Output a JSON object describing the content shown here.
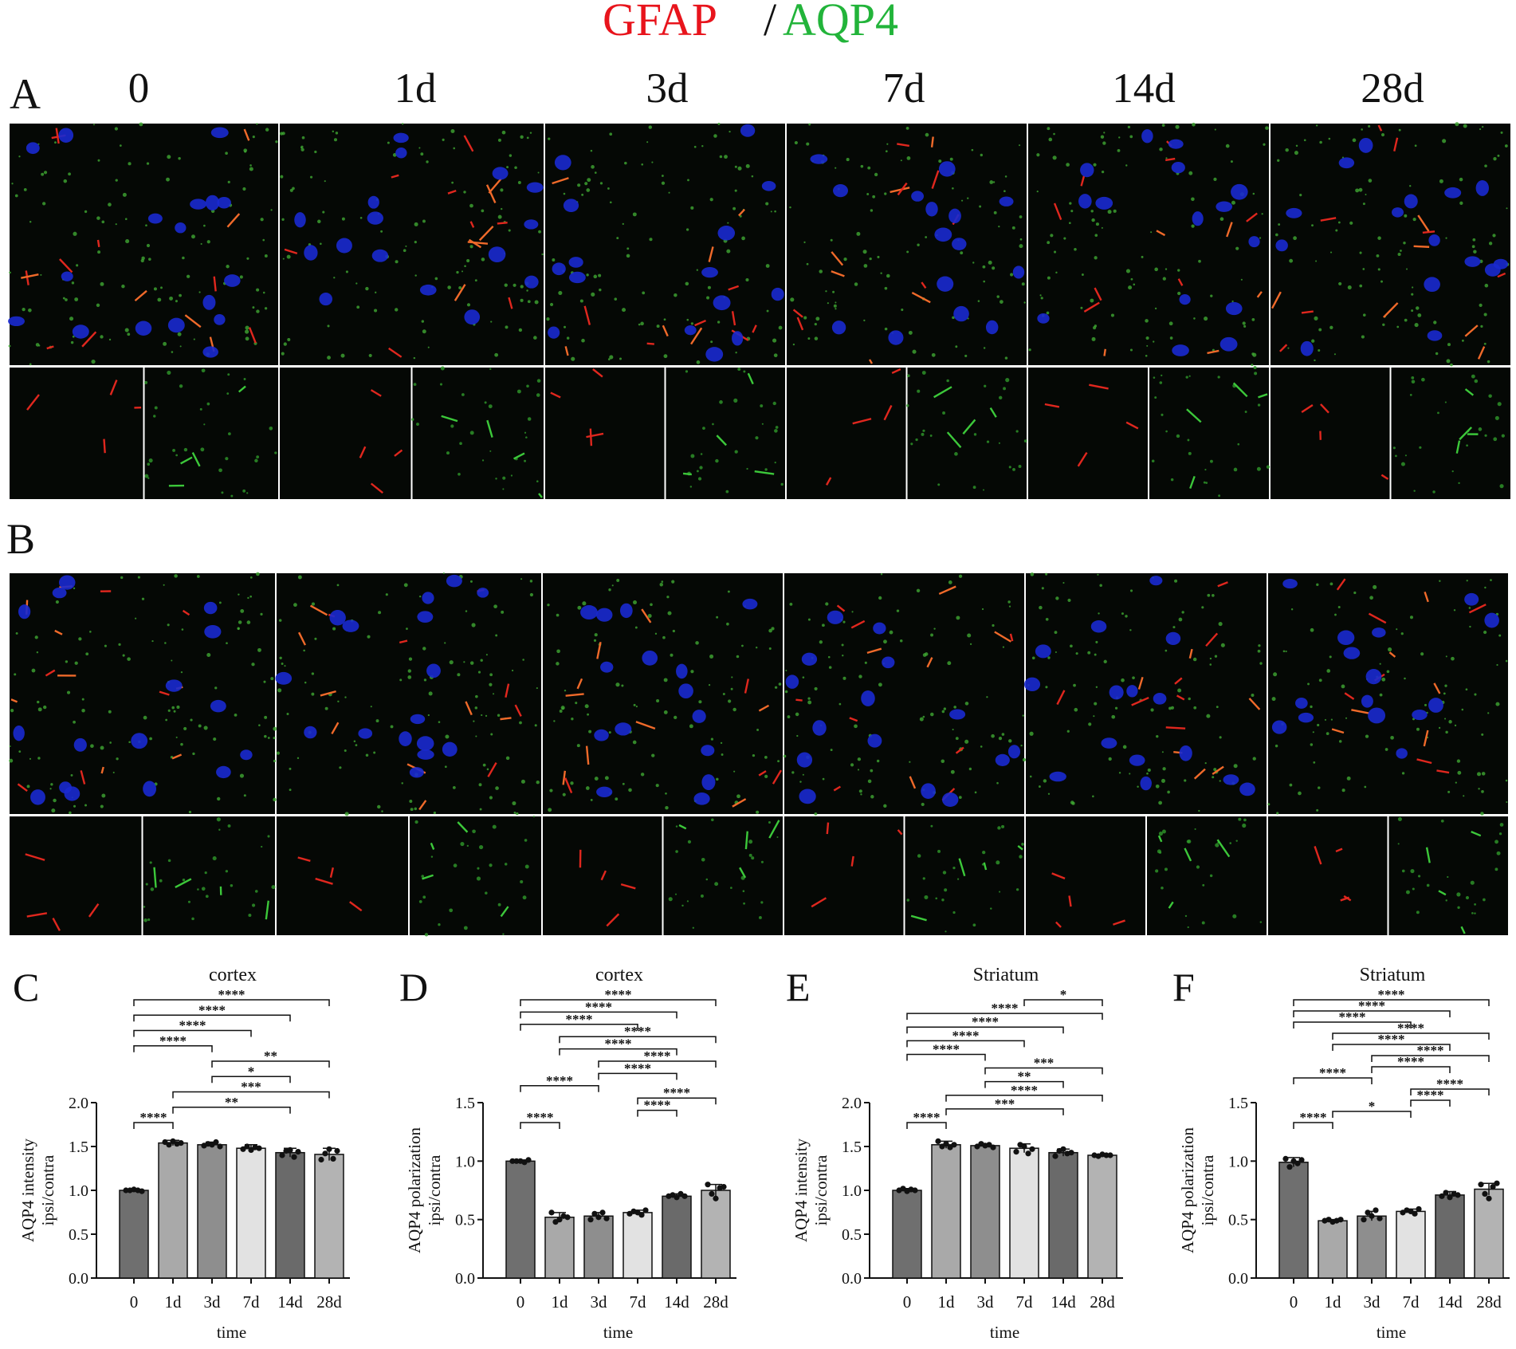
{
  "figure": {
    "title_parts": [
      "GFAP",
      "/",
      "AQP4"
    ],
    "panel_a": "A",
    "panel_b": "B",
    "columns": [
      "0",
      "1d",
      "3d",
      "7d",
      "14d",
      "28d"
    ]
  },
  "chart_data": [
    {
      "type": "bar",
      "panel": "C",
      "title": "cortex",
      "xlabel": "time",
      "ylabel": [
        "AQP4 intensity",
        "ipsi/contra"
      ],
      "categories": [
        "0",
        "1d",
        "3d",
        "7d",
        "14d",
        "28d"
      ],
      "values": [
        1.0,
        1.54,
        1.52,
        1.48,
        1.43,
        1.41
      ],
      "errors": [
        0.01,
        0.03,
        0.03,
        0.04,
        0.05,
        0.07
      ],
      "points": [
        [
          1.0,
          1.0,
          1.01,
          1.0,
          0.99
        ],
        [
          1.55,
          1.52,
          1.56,
          1.53,
          1.54
        ],
        [
          1.51,
          1.53,
          1.52,
          1.55,
          1.5
        ],
        [
          1.47,
          1.5,
          1.46,
          1.49,
          1.48
        ],
        [
          1.4,
          1.45,
          1.46,
          1.38,
          1.44
        ],
        [
          1.35,
          1.42,
          1.47,
          1.36,
          1.45
        ]
      ],
      "colors": [
        "#6f6f6f",
        "#a9a9a9",
        "#8e8e8e",
        "#e2e2e2",
        "#6a6a6a",
        "#b3b3b3"
      ],
      "ylim": [
        0,
        2.0
      ],
      "yticks": [
        {
          "value": 0,
          "label": "0.0"
        },
        {
          "value": 0.5,
          "label": "0.5"
        },
        {
          "value": 1.0,
          "label": "1.0"
        },
        {
          "value": 1.5,
          "label": "1.5"
        },
        {
          "value": 2.0,
          "label": "2.0"
        }
      ],
      "brackets": [
        {
          "from": 0,
          "to": 1,
          "label": "****"
        },
        {
          "from": 1,
          "to": 4,
          "label": "**"
        },
        {
          "from": 1,
          "to": 5,
          "label": "***"
        },
        {
          "from": 2,
          "to": 4,
          "label": "*"
        },
        {
          "from": 2,
          "to": 5,
          "label": "**"
        },
        {
          "from": 0,
          "to": 2,
          "label": "****"
        },
        {
          "from": 0,
          "to": 3,
          "label": "****"
        },
        {
          "from": 0,
          "to": 4,
          "label": "****"
        },
        {
          "from": 0,
          "to": 5,
          "label": "****"
        }
      ]
    },
    {
      "type": "bar",
      "panel": "D",
      "title": "cortex",
      "xlabel": "time",
      "ylabel": [
        "AQP4 polarization",
        "ipsi/contra"
      ],
      "categories": [
        "0",
        "1d",
        "3d",
        "7d",
        "14d",
        "28d"
      ],
      "values": [
        1.0,
        0.52,
        0.53,
        0.56,
        0.7,
        0.75
      ],
      "errors": [
        0.01,
        0.04,
        0.03,
        0.02,
        0.02,
        0.05
      ],
      "points": [
        [
          1.0,
          1.0,
          1.0,
          0.99,
          1.01
        ],
        [
          0.56,
          0.48,
          0.5,
          0.53,
          0.52
        ],
        [
          0.5,
          0.55,
          0.52,
          0.56,
          0.51
        ],
        [
          0.55,
          0.57,
          0.56,
          0.54,
          0.58
        ],
        [
          0.7,
          0.71,
          0.69,
          0.72,
          0.7
        ],
        [
          0.8,
          0.72,
          0.68,
          0.77,
          0.78
        ]
      ],
      "colors": [
        "#6f6f6f",
        "#a9a9a9",
        "#8e8e8e",
        "#e2e2e2",
        "#6a6a6a",
        "#b3b3b3"
      ],
      "ylim": [
        0,
        1.5
      ],
      "yticks": [
        {
          "value": 0,
          "label": "0.0"
        },
        {
          "value": 0.5,
          "label": "0.5"
        },
        {
          "value": 1.0,
          "label": "1.0"
        },
        {
          "value": 1.5,
          "label": "1.5"
        }
      ],
      "brackets": [
        {
          "from": 0,
          "to": 1,
          "label": "****"
        },
        {
          "from": 3,
          "to": 4,
          "label": "****"
        },
        {
          "from": 3,
          "to": 5,
          "label": "****"
        },
        {
          "from": 0,
          "to": 2,
          "label": "****"
        },
        {
          "from": 2,
          "to": 4,
          "label": "****"
        },
        {
          "from": 2,
          "to": 5,
          "label": "****"
        },
        {
          "from": 1,
          "to": 4,
          "label": "****"
        },
        {
          "from": 1,
          "to": 5,
          "label": "****"
        },
        {
          "from": 0,
          "to": 3,
          "label": "****"
        },
        {
          "from": 0,
          "to": 4,
          "label": "****"
        },
        {
          "from": 0,
          "to": 5,
          "label": "****"
        }
      ]
    },
    {
      "type": "bar",
      "panel": "E",
      "title": "Striatum",
      "xlabel": "time",
      "ylabel": [
        "AQP4 intensity",
        "ipsi/contra"
      ],
      "categories": [
        "0",
        "1d",
        "3d",
        "7d",
        "14d",
        "28d"
      ],
      "values": [
        1.0,
        1.52,
        1.51,
        1.48,
        1.43,
        1.4
      ],
      "errors": [
        0.02,
        0.04,
        0.02,
        0.05,
        0.04,
        0.01
      ],
      "points": [
        [
          1.0,
          1.02,
          0.99,
          1.01,
          1.0
        ],
        [
          1.56,
          1.5,
          1.53,
          1.49,
          1.52
        ],
        [
          1.5,
          1.53,
          1.51,
          1.52,
          1.49
        ],
        [
          1.44,
          1.52,
          1.5,
          1.42,
          1.47
        ],
        [
          1.39,
          1.45,
          1.47,
          1.42,
          1.43
        ],
        [
          1.4,
          1.39,
          1.41,
          1.4,
          1.4
        ]
      ],
      "colors": [
        "#6f6f6f",
        "#a9a9a9",
        "#8e8e8e",
        "#e2e2e2",
        "#6a6a6a",
        "#b3b3b3"
      ],
      "ylim": [
        0,
        2.0
      ],
      "yticks": [
        {
          "value": 0,
          "label": "0.0"
        },
        {
          "value": 0.5,
          "label": "0.5"
        },
        {
          "value": 1.0,
          "label": "1.0"
        },
        {
          "value": 1.5,
          "label": "1.5"
        },
        {
          "value": 2.0,
          "label": "2.0"
        }
      ],
      "brackets": [
        {
          "from": 0,
          "to": 1,
          "label": "****"
        },
        {
          "from": 1,
          "to": 4,
          "label": "***"
        },
        {
          "from": 1,
          "to": 5,
          "label": "****"
        },
        {
          "from": 2,
          "to": 4,
          "label": "**"
        },
        {
          "from": 2,
          "to": 5,
          "label": "***"
        },
        {
          "from": 0,
          "to": 2,
          "label": "****"
        },
        {
          "from": 0,
          "to": 3,
          "label": "****"
        },
        {
          "from": 0,
          "to": 4,
          "label": "****"
        },
        {
          "from": 0,
          "to": 5,
          "label": "****"
        },
        {
          "from": 3,
          "to": 5,
          "label": "*"
        }
      ]
    },
    {
      "type": "bar",
      "panel": "F",
      "title": "Striatum",
      "xlabel": "time",
      "ylabel": [
        "AQP4 polarization",
        "ipsi/contra"
      ],
      "categories": [
        "0",
        "1d",
        "3d",
        "7d",
        "14d",
        "28d"
      ],
      "values": [
        0.99,
        0.49,
        0.53,
        0.57,
        0.71,
        0.76
      ],
      "errors": [
        0.04,
        0.01,
        0.04,
        0.02,
        0.03,
        0.05
      ],
      "points": [
        [
          1.02,
          0.95,
          1.0,
          0.98,
          1.01
        ],
        [
          0.49,
          0.5,
          0.48,
          0.49,
          0.5
        ],
        [
          0.5,
          0.56,
          0.53,
          0.58,
          0.51
        ],
        [
          0.56,
          0.58,
          0.57,
          0.55,
          0.59
        ],
        [
          0.7,
          0.73,
          0.69,
          0.72,
          0.71
        ],
        [
          0.8,
          0.72,
          0.68,
          0.78,
          0.81
        ]
      ],
      "colors": [
        "#6f6f6f",
        "#a9a9a9",
        "#8e8e8e",
        "#e2e2e2",
        "#6a6a6a",
        "#b3b3b3"
      ],
      "ylim": [
        0,
        1.5
      ],
      "yticks": [
        {
          "value": 0,
          "label": "0.0"
        },
        {
          "value": 0.5,
          "label": "0.5"
        },
        {
          "value": 1.0,
          "label": "1.0"
        },
        {
          "value": 1.5,
          "label": "1.5"
        }
      ],
      "brackets": [
        {
          "from": 0,
          "to": 1,
          "label": "****"
        },
        {
          "from": 1,
          "to": 3,
          "label": "*"
        },
        {
          "from": 3,
          "to": 4,
          "label": "****"
        },
        {
          "from": 3,
          "to": 5,
          "label": "****"
        },
        {
          "from": 0,
          "to": 2,
          "label": "****"
        },
        {
          "from": 2,
          "to": 4,
          "label": "****"
        },
        {
          "from": 2,
          "to": 5,
          "label": "****"
        },
        {
          "from": 1,
          "to": 4,
          "label": "****"
        },
        {
          "from": 1,
          "to": 5,
          "label": "****"
        },
        {
          "from": 0,
          "to": 3,
          "label": "****"
        },
        {
          "from": 0,
          "to": 4,
          "label": "****"
        },
        {
          "from": 0,
          "to": 5,
          "label": "****"
        }
      ]
    }
  ]
}
